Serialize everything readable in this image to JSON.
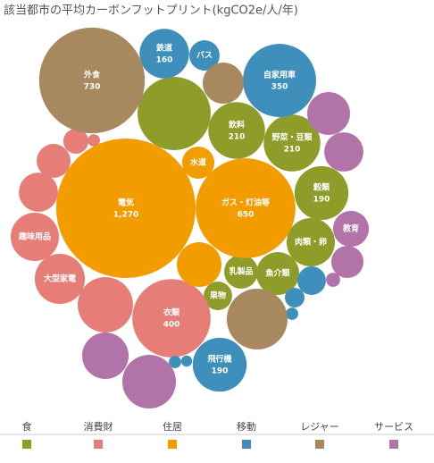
{
  "chart_data": {
    "type": "bubble",
    "title": "該当都市の平均カーボンフットプリント(kgCO2e/人/年)",
    "series": [
      {
        "name": "食",
        "color": "#8e9d2a",
        "labels": [
          null,
          "飲料",
          "野菜・豆類",
          "穀類",
          "肉類・卵",
          "魚介類",
          "乳製品",
          "果物"
        ],
        "values": [
          350,
          210,
          210,
          190,
          152,
          120,
          75,
          53
        ],
        "value_labels": [
          null,
          "210",
          "210",
          "190",
          null,
          null,
          null,
          null
        ]
      },
      {
        "name": "消費財",
        "color": "#e67e77",
        "labels": [
          "衣類",
          null,
          "大型家電",
          "趣味用品",
          null,
          null,
          null,
          null
        ],
        "values": [
          400,
          200,
          164,
          152,
          100,
          75,
          41,
          10
        ],
        "value_labels": [
          "400",
          null,
          null,
          null,
          null,
          null,
          null,
          null
        ]
      },
      {
        "name": "住居",
        "color": "#f39c00",
        "labels": [
          "電気",
          "ガス・灯油等",
          null,
          "水道"
        ],
        "values": [
          1270,
          650,
          130,
          68
        ],
        "value_labels": [
          "1,270",
          "650",
          null,
          null
        ]
      },
      {
        "name": "移動",
        "color": "#3e8fbb",
        "labels": [
          "自家用車",
          "鉄道",
          "飛行機",
          "バス",
          null,
          null,
          null,
          null,
          null
        ],
        "values": [
          350,
          160,
          190,
          60,
          53,
          25,
          10,
          10,
          8
        ],
        "value_labels": [
          "350",
          "160",
          "190",
          null,
          null,
          null,
          null,
          null,
          null
        ]
      },
      {
        "name": "レジャー",
        "color": "#a8885f",
        "labels": [
          "外食",
          null,
          null
        ],
        "values": [
          730,
          241,
          110
        ],
        "value_labels": [
          "730",
          null,
          null
        ]
      },
      {
        "name": "サービス",
        "color": "#b274a8",
        "labels": [
          null,
          null,
          null,
          null,
          "教育",
          null,
          null
        ],
        "values": [
          141,
          188,
          120,
          100,
          84,
          68,
          13
        ],
        "value_labels": [
          null,
          null,
          null,
          null,
          null,
          null,
          null
        ]
      }
    ]
  }
}
